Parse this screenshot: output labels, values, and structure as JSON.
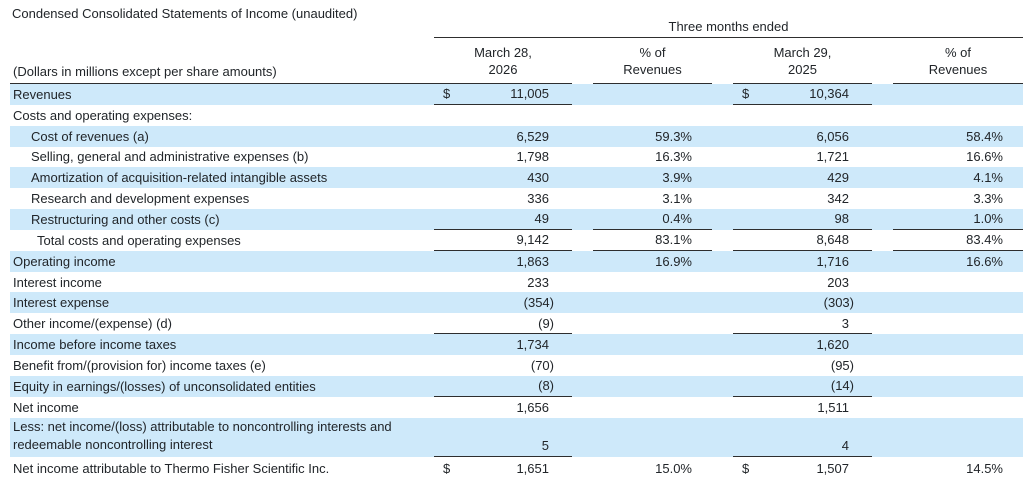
{
  "title": "Condensed Consolidated Statements of Income (unaudited)",
  "colors": {
    "highlight": "#cee9fa",
    "text": "#212529",
    "rule": "#2e2e2e"
  },
  "table": {
    "span_header": "Three months ended",
    "note": "(Dollars in millions except per share amounts)",
    "columns": [
      {
        "line1": "March 28,",
        "line2": "2026"
      },
      {
        "line1": "% of",
        "line2": "Revenues"
      },
      {
        "line1": "March 29,",
        "line2": "2025"
      },
      {
        "line1": "% of",
        "line2": "Revenues"
      }
    ],
    "rows": [
      {
        "label": "Revenues",
        "indent": 0,
        "shade": true,
        "dollar": true,
        "cells": [
          "11,005",
          "",
          "10,364",
          ""
        ],
        "rules": [
          true,
          false,
          true,
          false
        ]
      },
      {
        "label": "Costs and operating expenses:",
        "indent": 0,
        "shade": false,
        "cells": [
          "",
          "",
          "",
          ""
        ],
        "rules": [
          false,
          false,
          false,
          false
        ]
      },
      {
        "label": "Cost of revenues (a)",
        "indent": 1,
        "shade": true,
        "cells": [
          "6,529",
          "59.3%",
          "6,056",
          "58.4%"
        ],
        "rules": [
          false,
          false,
          false,
          false
        ]
      },
      {
        "label": "Selling, general and administrative expenses (b)",
        "indent": 1,
        "shade": false,
        "cells": [
          "1,798",
          "16.3%",
          "1,721",
          "16.6%"
        ],
        "rules": [
          false,
          false,
          false,
          false
        ]
      },
      {
        "label": "Amortization of acquisition-related intangible assets",
        "indent": 1,
        "shade": true,
        "cells": [
          "430",
          "3.9%",
          "429",
          "4.1%"
        ],
        "rules": [
          false,
          false,
          false,
          false
        ]
      },
      {
        "label": "Research and development expenses",
        "indent": 1,
        "shade": false,
        "cells": [
          "336",
          "3.1%",
          "342",
          "3.3%"
        ],
        "rules": [
          false,
          false,
          false,
          false
        ]
      },
      {
        "label": "Restructuring and other costs (c)",
        "indent": 1,
        "shade": true,
        "cells": [
          "49",
          "0.4%",
          "98",
          "1.0%"
        ],
        "rules": [
          true,
          true,
          true,
          true
        ]
      },
      {
        "label": "Total costs and operating expenses",
        "indent": 2,
        "shade": false,
        "cells": [
          "9,142",
          "83.1%",
          "8,648",
          "83.4%"
        ],
        "rules": [
          true,
          true,
          true,
          true
        ]
      },
      {
        "label": "Operating income",
        "indent": 0,
        "shade": true,
        "cells": [
          "1,863",
          "16.9%",
          "1,716",
          "16.6%"
        ],
        "rules": [
          false,
          false,
          false,
          false
        ]
      },
      {
        "label": "Interest income",
        "indent": 0,
        "shade": false,
        "cells": [
          "233",
          "",
          "203",
          ""
        ],
        "rules": [
          false,
          false,
          false,
          false
        ]
      },
      {
        "label": "Interest expense",
        "indent": 0,
        "shade": true,
        "cells": [
          "(354)",
          "",
          "(303)",
          ""
        ],
        "rules": [
          false,
          false,
          false,
          false
        ]
      },
      {
        "label": "Other income/(expense) (d)",
        "indent": 0,
        "shade": false,
        "cells": [
          "(9)",
          "",
          "3",
          ""
        ],
        "rules": [
          true,
          false,
          true,
          false
        ]
      },
      {
        "label": "Income before income taxes",
        "indent": 0,
        "shade": true,
        "cells": [
          "1,734",
          "",
          "1,620",
          ""
        ],
        "rules": [
          false,
          false,
          false,
          false
        ]
      },
      {
        "label": "Benefit from/(provision for) income taxes (e)",
        "indent": 0,
        "shade": false,
        "cells": [
          "(70)",
          "",
          "(95)",
          ""
        ],
        "rules": [
          false,
          false,
          false,
          false
        ]
      },
      {
        "label": "Equity in earnings/(losses) of unconsolidated entities",
        "indent": 0,
        "shade": true,
        "cells": [
          "(8)",
          "",
          "(14)",
          ""
        ],
        "rules": [
          true,
          false,
          true,
          false
        ]
      },
      {
        "label": "Net income",
        "indent": 0,
        "shade": false,
        "cells": [
          "1,656",
          "",
          "1,511",
          ""
        ],
        "rules": [
          false,
          false,
          false,
          false
        ]
      },
      {
        "label": "Less: net income/(loss) attributable to noncontrolling interests and",
        "label2": "redeemable noncontrolling interest",
        "indent": 0,
        "shade": true,
        "cells": [
          "5",
          "",
          "4",
          ""
        ],
        "rules": [
          true,
          false,
          true,
          false
        ]
      },
      {
        "label": "Net income attributable to Thermo Fisher Scientific Inc.",
        "indent": 0,
        "shade": false,
        "dollar": true,
        "last": true,
        "cells": [
          "1,651",
          "15.0%",
          "1,507",
          "14.5%"
        ],
        "rules": [
          false,
          false,
          false,
          false
        ]
      }
    ]
  }
}
